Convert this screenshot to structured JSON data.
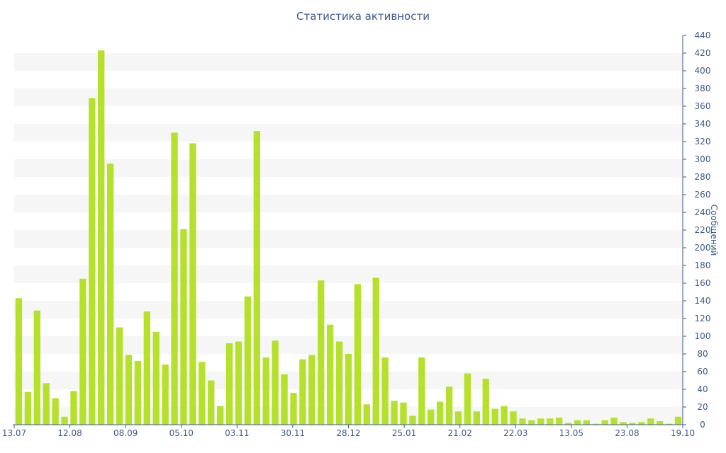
{
  "chart_data": {
    "type": "bar",
    "title": "Статистика активности",
    "ylabel": "Сообщений",
    "xlabel": "",
    "ylim": [
      0,
      440
    ],
    "y_ticks": [
      0,
      20,
      40,
      60,
      80,
      100,
      120,
      140,
      160,
      180,
      200,
      220,
      240,
      260,
      280,
      300,
      320,
      340,
      360,
      380,
      400,
      420,
      440
    ],
    "y_axis_side": "right",
    "grid": "alternating horizontal bands",
    "x_tick_labels": [
      "13.07",
      "12.08",
      "08.09",
      "05.10",
      "03.11",
      "30.11",
      "28.12",
      "25.01",
      "21.02",
      "22.03",
      "13.05",
      "23.08",
      "19.10"
    ],
    "bar_color": "#b5e02b",
    "values": [
      143,
      37,
      129,
      47,
      30,
      9,
      38,
      165,
      369,
      423,
      295,
      110,
      79,
      72,
      128,
      105,
      68,
      330,
      221,
      318,
      71,
      50,
      21,
      92,
      94,
      145,
      332,
      76,
      95,
      57,
      36,
      74,
      79,
      163,
      113,
      94,
      80,
      159,
      23,
      166,
      76,
      27,
      25,
      10,
      76,
      17,
      26,
      43,
      15,
      58,
      15,
      52,
      18,
      21,
      15,
      7,
      5,
      7,
      7,
      8,
      2,
      5,
      5,
      1,
      5,
      8,
      3,
      2,
      3,
      7,
      4,
      1,
      9
    ]
  }
}
